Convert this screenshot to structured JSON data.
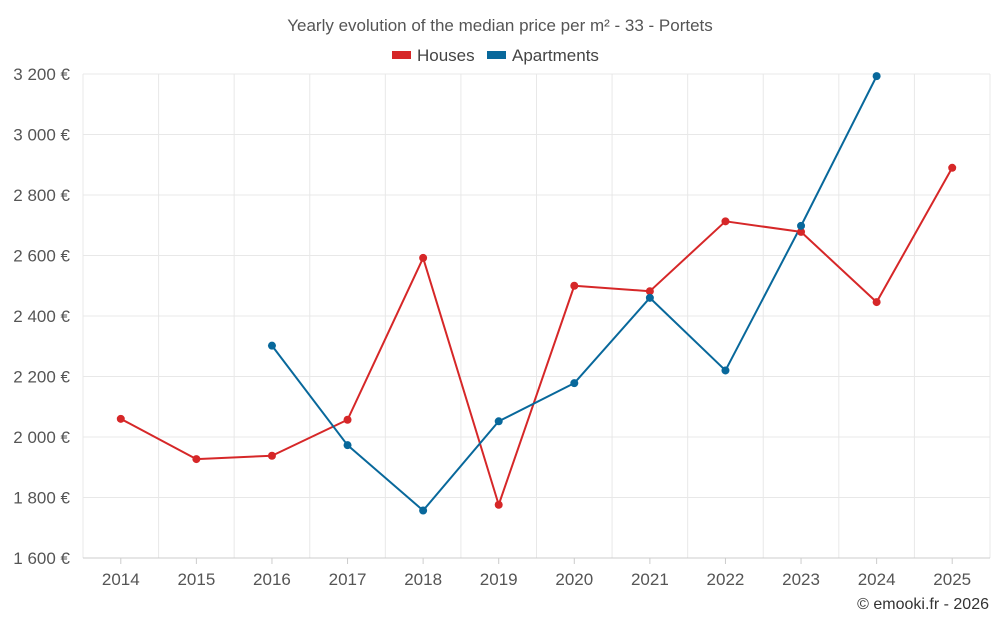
{
  "chart_data": {
    "type": "line",
    "title": "Yearly evolution of the median price per m² - 33 - Portets",
    "categories": [
      "2014",
      "2015",
      "2016",
      "2017",
      "2018",
      "2019",
      "2020",
      "2021",
      "2022",
      "2023",
      "2024",
      "2025"
    ],
    "series": [
      {
        "name": "Houses",
        "color": "#d62728",
        "values": [
          2060,
          1927,
          1938,
          2057,
          2592,
          1776,
          2500,
          2482,
          2713,
          2678,
          2446,
          2890
        ]
      },
      {
        "name": "Apartments",
        "color": "#08689b",
        "values": [
          null,
          null,
          2302,
          1973,
          1757,
          2052,
          2178,
          2460,
          2220,
          2698,
          3193,
          null
        ]
      }
    ],
    "ylim": [
      1600,
      3200
    ],
    "yticks": [
      1600,
      1800,
      2000,
      2200,
      2400,
      2600,
      2800,
      3000,
      3200
    ],
    "ytick_labels": [
      "1 600 €",
      "1 800 €",
      "2 000 €",
      "2 200 €",
      "2 400 €",
      "2 600 €",
      "2 800 €",
      "3 000 €",
      "3 200 €"
    ],
    "grid": true,
    "legend_position": "top-center",
    "xlabel": "",
    "ylabel": ""
  },
  "credit": "© emooki.fr - 2026"
}
